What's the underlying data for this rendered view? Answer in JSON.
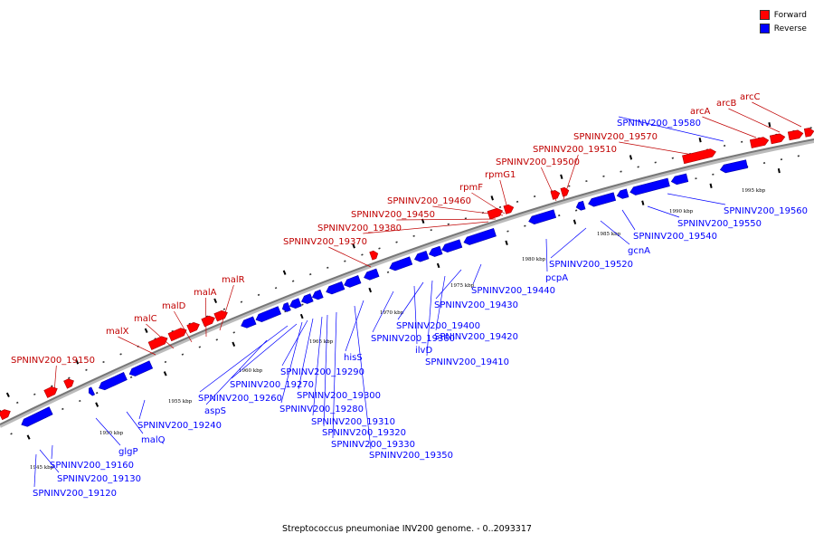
{
  "caption": "Streptococcus pneumoniae INV200 genome. - 0..2093317",
  "legend": [
    {
      "label": "Forward",
      "color": "#ff0000"
    },
    {
      "label": "Reverse",
      "color": "#0000ff"
    }
  ],
  "ticks": [
    "1945 kbp",
    "1950 kbp",
    "1955 kbp",
    "1960 kbp",
    "1965 kbp",
    "1970 kbp",
    "1975 kbp",
    "1980 kbp",
    "1985 kbp",
    "1990 kbp",
    "1995 kbp"
  ],
  "forward_labels": [
    "SPNINV200_19150",
    "malX",
    "malC",
    "malD",
    "malA",
    "malR",
    "SPNINV200_19370",
    "SPNINV200_19380",
    "SPNINV200_19450",
    "SPNINV200_19460",
    "rpmF",
    "rpmG1",
    "SPNINV200_19500",
    "SPNINV200_19510",
    "SPNINV200_19570",
    "arcA",
    "arcB",
    "arcC"
  ],
  "reverse_labels": [
    "SPNINV200_19580",
    "SPNINV200_19560",
    "SPNINV200_19550",
    "SPNINV200_19540",
    "gcnA",
    "SPNINV200_19520",
    "pcpA",
    "SPNINV200_19440",
    "SPNINV200_19430",
    "SPNINV200_19420",
    "SPNINV200_19410",
    "SPNINV200_19400",
    "ilvD",
    "SPNINV200_19360",
    "hisS",
    "SPNINV200_19350",
    "SPNINV200_19330",
    "SPNINV200_19320",
    "SPNINV200_19310",
    "SPNINV200_19300",
    "SPNINV200_19290",
    "SPNINV200_19280",
    "SPNINV200_19270",
    "SPNINV200_19260",
    "aspS",
    "SPNINV200_19240",
    "malQ",
    "glgP",
    "SPNINV200_19160",
    "SPNINV200_19130",
    "SPNINV200_19120"
  ]
}
